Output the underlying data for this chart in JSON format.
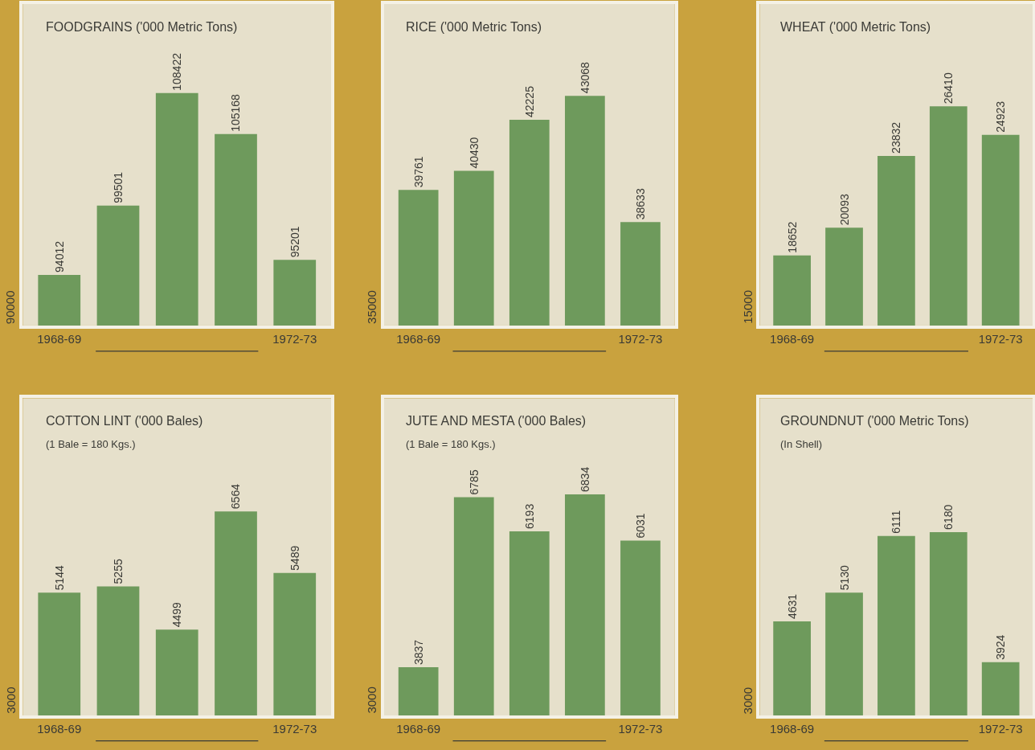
{
  "chart_data": [
    {
      "type": "bar",
      "title": "FOODGRAINS ('000 Metric Tons)",
      "categories": [
        "1968-69",
        null,
        null,
        null,
        "1972-73"
      ],
      "values": [
        94012,
        99501,
        108422,
        105168,
        95201
      ],
      "color": "#6e9a5c",
      "ylim": [
        90000,
        115500
      ],
      "data_labels": true,
      "annotations": [
        "90000"
      ]
    },
    {
      "type": "bar",
      "title": "RICE ('000 Metric Tons)",
      "categories": [
        "1968-69",
        null,
        null,
        null,
        "1972-73"
      ],
      "values": [
        39761,
        40430,
        42225,
        43068,
        38633
      ],
      "color": "#6e9a5c",
      "ylim": [
        35000,
        46300
      ],
      "data_labels": true,
      "annotations": [
        "35000"
      ]
    },
    {
      "type": "bar",
      "title": "WHEAT ('000 Metric Tons)",
      "categories": [
        "1968-69",
        null,
        null,
        null,
        "1972-73"
      ],
      "values": [
        18652,
        20093,
        23832,
        26410,
        24923
      ],
      "color": "#6e9a5c",
      "ylim": [
        15000,
        31750
      ],
      "data_labels": true,
      "annotations": [
        "15000"
      ]
    },
    {
      "type": "bar",
      "title": "COTTON LINT ('000 Bales)",
      "subtitle": "(1 Bale = 180 Kgs.)",
      "categories": [
        "1968-69",
        null,
        null,
        null,
        "1972-73"
      ],
      "values": [
        5144,
        5255,
        4499,
        6564,
        5489
      ],
      "color": "#6e9a5c",
      "ylim": [
        3000,
        8540
      ],
      "data_labels": true,
      "annotations": [
        "3000"
      ]
    },
    {
      "type": "bar",
      "title": "JUTE AND MESTA ('000 Bales)",
      "subtitle": "(1 Bale = 180 Kgs.)",
      "categories": [
        "1968-69",
        null,
        null,
        null,
        "1972-73"
      ],
      "values": [
        3837,
        6785,
        6193,
        6834,
        6031
      ],
      "color": "#6e9a5c",
      "ylim": [
        3000,
        8500
      ],
      "data_labels": true,
      "annotations": [
        "3000"
      ]
    },
    {
      "type": "bar",
      "title": "GROUNDNUT ('000 Metric Tons)",
      "subtitle": "(In Shell)",
      "categories": [
        "1968-69",
        null,
        null,
        null,
        "1972-73"
      ],
      "values": [
        4631,
        5130,
        6111,
        6180,
        3924
      ],
      "color": "#6e9a5c",
      "ylim": [
        3000,
        8500
      ],
      "data_labels": true,
      "annotations": [
        "3000"
      ]
    }
  ]
}
